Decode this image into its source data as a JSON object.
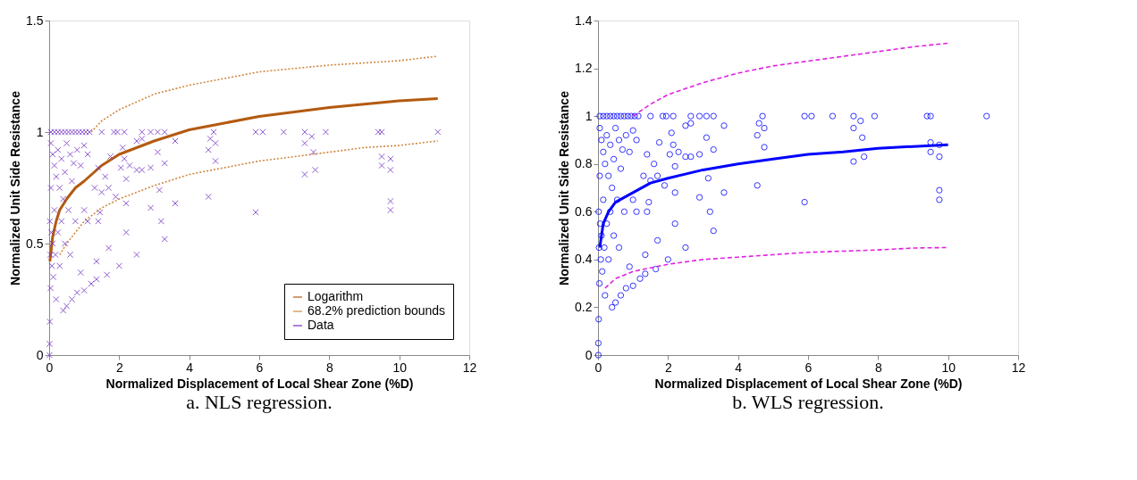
{
  "chart_data": [
    {
      "type": "scatter",
      "title": "a. NLS regression.",
      "xlabel": "Normalized Displacement of Local Shear Zone (%D)",
      "ylabel": "Normalized Unit Side Resistance",
      "xlim": [
        0,
        12
      ],
      "xticks": [
        0,
        2,
        4,
        6,
        8,
        10,
        12
      ],
      "ylim": [
        0,
        1.5
      ],
      "yticks": [
        0,
        0.5,
        1,
        1.5
      ],
      "grid": false,
      "legend": "bottom right",
      "series": [
        {
          "name": "Logarithm",
          "type": "line",
          "color": "#b35a10",
          "line_style": "solid",
          "x": [
            0.02,
            0.1,
            0.2,
            0.3,
            0.5,
            0.75,
            1,
            1.5,
            2,
            3,
            4,
            5,
            6,
            7,
            8,
            9,
            10,
            11.1
          ],
          "values": [
            0.42,
            0.53,
            0.6,
            0.65,
            0.7,
            0.75,
            0.78,
            0.85,
            0.9,
            0.96,
            1.01,
            1.04,
            1.07,
            1.09,
            1.11,
            1.125,
            1.14,
            1.15
          ]
        },
        {
          "name": "68.2% prediction bounds",
          "type": "line",
          "color": "#d08840",
          "line_style": "dotted",
          "x": [
            1.2,
            1.5,
            2,
            3,
            4,
            5,
            6,
            7,
            8,
            9,
            10,
            11.1
          ],
          "values": [
            1.0,
            1.05,
            1.1,
            1.17,
            1.21,
            1.24,
            1.27,
            1.285,
            1.3,
            1.31,
            1.32,
            1.34
          ]
        },
        {
          "type": "line",
          "color": "#d08840",
          "line_style": "dotted",
          "x": [
            0.3,
            0.5,
            1,
            1.5,
            2,
            3,
            4,
            5,
            6,
            7,
            8,
            9,
            10,
            11.1
          ],
          "values": [
            0.45,
            0.5,
            0.6,
            0.66,
            0.7,
            0.76,
            0.81,
            0.84,
            0.87,
            0.89,
            0.91,
            0.93,
            0.94,
            0.96
          ]
        },
        {
          "name": "Data",
          "marker": "cross",
          "color": "#7030c0",
          "x": [
            0.05,
            0.15,
            0.25,
            0.35,
            0.45,
            0.55,
            0.65,
            0.75,
            0.85,
            0.95,
            1.05,
            1.15,
            1.5,
            1.85,
            1.95,
            2.15,
            2.65,
            2.9,
            3.1,
            3.3,
            4.7,
            5.9,
            6.1,
            6.7,
            7.3,
            7.9,
            9.4,
            9.5,
            11.1,
            0.05,
            0.1,
            0.15,
            0.2,
            0.25,
            0.3,
            0.35,
            0.4,
            0.45,
            0.5,
            0.55,
            0.6,
            0.65,
            0.7,
            0.75,
            0.8,
            0.9,
            1.0,
            1.1,
            0.05,
            0.02,
            0.03,
            0.04,
            0.02,
            0.01,
            0.01,
            0.06,
            0.08,
            0.1,
            0.12,
            0.15,
            0.18,
            0.2,
            0.25,
            0.3,
            0.35,
            0.4,
            0.45,
            0.5,
            0.6,
            0.65,
            0.8,
            0.9,
            1.0,
            1.0,
            1.1,
            1.2,
            1.35,
            1.35,
            1.4,
            1.45,
            1.3,
            1.4,
            1.5,
            1.65,
            1.7,
            1.7,
            1.6,
            1.75,
            1.9,
            2.0,
            2.05,
            2.1,
            2.15,
            2.2,
            2.2,
            2.2,
            2.3,
            2.5,
            2.5,
            2.5,
            2.65,
            2.65,
            2.9,
            2.9,
            3.1,
            3.15,
            3.2,
            3.3,
            3.3,
            3.6,
            3.6,
            4.55,
            4.55,
            4.6,
            4.75,
            4.75,
            5.9,
            7.3,
            7.3,
            7.5,
            7.55,
            7.6,
            9.5,
            9.5,
            9.75,
            9.75,
            9.75,
            9.75
          ],
          "values": [
            1,
            1,
            1,
            1,
            1,
            1,
            1,
            1,
            1,
            1,
            1,
            1,
            1,
            1,
            1,
            1,
            1,
            1,
            1,
            1,
            1,
            1,
            1,
            1,
            1,
            1,
            1,
            1,
            1,
            0.95,
            0.9,
            0.85,
            0.8,
            0.92,
            0.75,
            0.88,
            0.7,
            0.82,
            0.95,
            0.65,
            0.9,
            0.78,
            0.86,
            0.6,
            0.92,
            0.85,
            0.94,
            0.9,
            0.75,
            0.6,
            0.45,
            0.3,
            0.15,
            0.05,
            0.0,
            0.55,
            0.4,
            0.5,
            0.35,
            0.65,
            0.45,
            0.25,
            0.55,
            0.4,
            0.6,
            0.2,
            0.5,
            0.22,
            0.45,
            0.25,
            0.28,
            0.37,
            0.29,
            0.65,
            0.6,
            0.32,
            0.42,
            0.34,
            0.6,
            0.64,
            0.75,
            0.84,
            0.73,
            0.36,
            0.48,
            0.75,
            0.8,
            0.89,
            0.71,
            0.4,
            0.84,
            0.93,
            0.88,
            0.79,
            0.68,
            0.55,
            0.85,
            0.45,
            0.96,
            0.83,
            0.97,
            0.83,
            0.84,
            0.66,
            0.91,
            0.74,
            0.6,
            0.52,
            0.86,
            0.68,
            0.96,
            0.71,
            0.92,
            0.97,
            0.95,
            0.87,
            0.64,
            0.95,
            0.81,
            0.98,
            0.91,
            0.83,
            0.89,
            0.85,
            0.88,
            0.83,
            0.69,
            0.65
          ]
        }
      ]
    },
    {
      "type": "scatter",
      "title": "b.   WLS regression.",
      "xlabel": "Normalized Displacement of Local Shear Zone (%D)",
      "ylabel": "Normalized Unit Side Resistance",
      "xlim": [
        0,
        12
      ],
      "xticks": [
        0,
        2,
        4,
        6,
        8,
        10,
        12
      ],
      "ylim": [
        0,
        1.4
      ],
      "yticks": [
        0,
        0.2,
        0.4,
        0.6,
        0.8,
        1,
        1.2,
        1.4
      ],
      "grid": false,
      "legend": false,
      "series": [
        {
          "marker": "circle",
          "color": "#0000ff",
          "x": [
            0.05,
            0.15,
            0.25,
            0.35,
            0.45,
            0.55,
            0.65,
            0.75,
            0.85,
            0.95,
            1.05,
            1.15,
            1.5,
            1.85,
            1.95,
            2.15,
            2.65,
            2.9,
            3.1,
            3.3,
            4.7,
            5.9,
            6.1,
            6.7,
            7.3,
            7.9,
            9.4,
            9.5,
            11.1,
            0.05,
            0.1,
            0.15,
            0.2,
            0.25,
            0.3,
            0.35,
            0.4,
            0.45,
            0.5,
            0.55,
            0.6,
            0.65,
            0.7,
            0.75,
            0.8,
            0.9,
            1.0,
            1.1,
            0.05,
            0.02,
            0.03,
            0.04,
            0.02,
            0.01,
            0.01,
            0.06,
            0.08,
            0.1,
            0.12,
            0.15,
            0.18,
            0.2,
            0.25,
            0.3,
            0.35,
            0.4,
            0.45,
            0.5,
            0.6,
            0.65,
            0.8,
            0.9,
            1.0,
            1.0,
            1.1,
            1.2,
            1.35,
            1.35,
            1.4,
            1.45,
            1.3,
            1.4,
            1.5,
            1.65,
            1.7,
            1.7,
            1.6,
            1.75,
            1.9,
            2.0,
            2.05,
            2.1,
            2.15,
            2.2,
            2.2,
            2.2,
            2.3,
            2.5,
            2.5,
            2.5,
            2.65,
            2.65,
            2.9,
            2.9,
            3.1,
            3.15,
            3.2,
            3.3,
            3.3,
            3.6,
            3.6,
            4.55,
            4.55,
            4.6,
            4.75,
            4.75,
            5.9,
            7.3,
            7.3,
            7.5,
            7.55,
            7.6,
            9.5,
            9.5,
            9.75,
            9.75,
            9.75,
            9.75
          ],
          "values": [
            1,
            1,
            1,
            1,
            1,
            1,
            1,
            1,
            1,
            1,
            1,
            1,
            1,
            1,
            1,
            1,
            1,
            1,
            1,
            1,
            1,
            1,
            1,
            1,
            1,
            1,
            1,
            1,
            1,
            0.95,
            0.9,
            0.85,
            0.8,
            0.92,
            0.75,
            0.88,
            0.7,
            0.82,
            0.95,
            0.65,
            0.9,
            0.78,
            0.86,
            0.6,
            0.92,
            0.85,
            0.94,
            0.9,
            0.75,
            0.6,
            0.45,
            0.3,
            0.15,
            0.05,
            0.0,
            0.55,
            0.4,
            0.5,
            0.35,
            0.65,
            0.45,
            0.25,
            0.55,
            0.4,
            0.6,
            0.2,
            0.5,
            0.22,
            0.45,
            0.25,
            0.28,
            0.37,
            0.29,
            0.65,
            0.6,
            0.32,
            0.42,
            0.34,
            0.6,
            0.64,
            0.75,
            0.84,
            0.73,
            0.36,
            0.48,
            0.75,
            0.8,
            0.89,
            0.71,
            0.4,
            0.84,
            0.93,
            0.88,
            0.79,
            0.68,
            0.55,
            0.85,
            0.45,
            0.96,
            0.83,
            0.97,
            0.83,
            0.84,
            0.66,
            0.91,
            0.74,
            0.6,
            0.52,
            0.86,
            0.68,
            0.96,
            0.71,
            0.92,
            0.97,
            0.95,
            0.87,
            0.64,
            0.95,
            0.81,
            0.98,
            0.91,
            0.83,
            0.89,
            0.85,
            0.88,
            0.83,
            0.69,
            0.65
          ]
        },
        {
          "type": "line",
          "color": "#0000ff",
          "line_style": "solid",
          "x": [
            0.05,
            0.15,
            0.3,
            0.5,
            1,
            1.5,
            2,
            3,
            4,
            5,
            6,
            7,
            8,
            9,
            10
          ],
          "values": [
            0.45,
            0.55,
            0.6,
            0.64,
            0.68,
            0.72,
            0.74,
            0.775,
            0.8,
            0.82,
            0.84,
            0.85,
            0.865,
            0.873,
            0.88
          ]
        },
        {
          "type": "line",
          "color": "#e020e0",
          "line_style": "dashed",
          "x": [
            1,
            1.5,
            2,
            3,
            4,
            5,
            6,
            7,
            8,
            9,
            10
          ],
          "values": [
            1.0,
            1.05,
            1.09,
            1.14,
            1.18,
            1.21,
            1.23,
            1.25,
            1.27,
            1.29,
            1.305
          ]
        },
        {
          "type": "line",
          "color": "#e020e0",
          "line_style": "dashed",
          "x": [
            0.2,
            0.5,
            1,
            2,
            3,
            4,
            5,
            6,
            7,
            8,
            9,
            10
          ],
          "values": [
            0.28,
            0.32,
            0.35,
            0.38,
            0.4,
            0.41,
            0.42,
            0.43,
            0.435,
            0.44,
            0.448,
            0.45
          ]
        }
      ]
    }
  ]
}
